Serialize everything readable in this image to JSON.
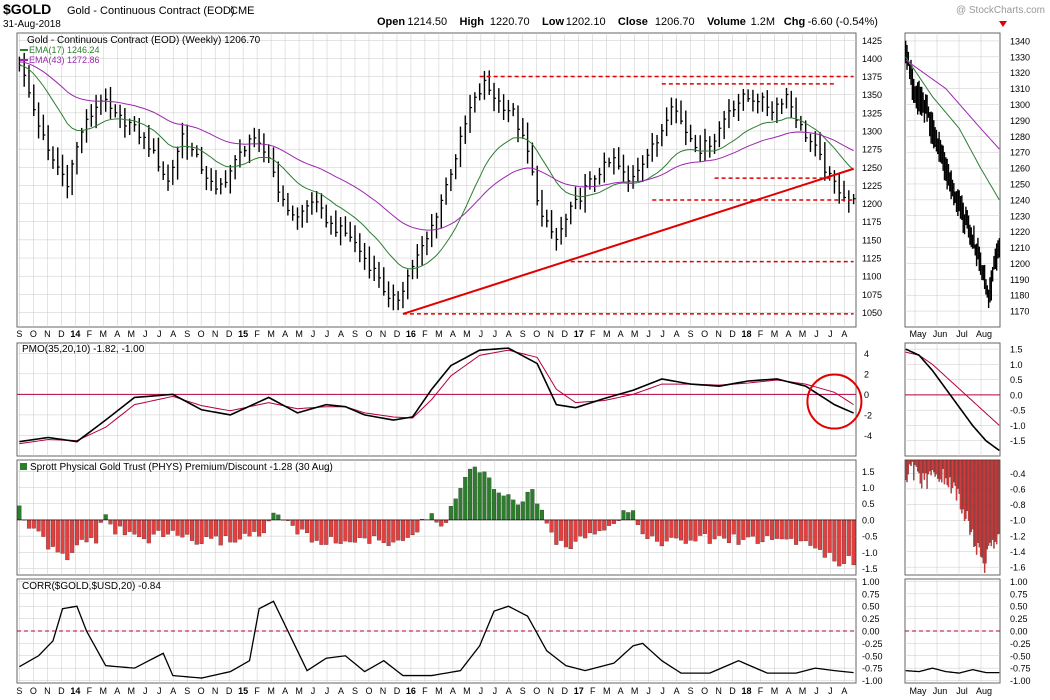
{
  "header": {
    "symbol": "$GOLD",
    "name": "Gold - Continuous Contract (EOD)",
    "exchange": "CME",
    "date": "31-Aug-2018",
    "watermark": "@ StockCharts.com",
    "stats": [
      {
        "k": "Open",
        "v": "1214.50"
      },
      {
        "k": "High",
        "v": "1220.70"
      },
      {
        "k": "Low",
        "v": "1202.10"
      },
      {
        "k": "Close",
        "v": "1206.70"
      },
      {
        "k": "Volume",
        "v": "1.2M"
      },
      {
        "k": "Chg",
        "v": "-6.60 (-0.54%)"
      }
    ]
  },
  "colors": {
    "price": "#000000",
    "ema17": "#2e7d32",
    "ema43": "#9c27b0",
    "pmo": "#000000",
    "pmo_signal": "#b3003c",
    "trend": "#e00000",
    "premium": "#2e7d2e",
    "discount": "#e04040",
    "grid": "#c8c8c8",
    "circle": "#e00000"
  },
  "chart_data": [
    {
      "type": "bar",
      "panel": "price",
      "title": "Gold - Continuous Contract (EOD) (Weekly) 1206.70",
      "legend": [
        "EMA(17) 1246.24",
        "EMA(43) 1272.86"
      ],
      "ylim": [
        1030,
        1435
      ],
      "yticks": [
        1050,
        1075,
        1100,
        1125,
        1150,
        1175,
        1200,
        1225,
        1250,
        1275,
        1300,
        1325,
        1350,
        1375,
        1400,
        1425
      ],
      "x_axis": {
        "ticks": [
          "S",
          "O",
          "N",
          "D",
          "14",
          "F",
          "M",
          "A",
          "M",
          "J",
          "J",
          "A",
          "S",
          "O",
          "N",
          "D",
          "15",
          "F",
          "M",
          "A",
          "M",
          "J",
          "J",
          "A",
          "S",
          "O",
          "N",
          "D",
          "16",
          "F",
          "M",
          "A",
          "M",
          "J",
          "J",
          "A",
          "S",
          "O",
          "N",
          "D",
          "17",
          "F",
          "M",
          "A",
          "M",
          "J",
          "J",
          "A",
          "S",
          "O",
          "N",
          "D",
          "18",
          "F",
          "M",
          "A",
          "M",
          "J",
          "J",
          "A"
        ],
        "bold": [
          "14",
          "15",
          "16",
          "17",
          "18"
        ]
      },
      "anchors": [
        [
          0,
          1395
        ],
        [
          3,
          1330
        ],
        [
          6,
          1270
        ],
        [
          10,
          1230
        ],
        [
          13,
          1300
        ],
        [
          17,
          1345
        ],
        [
          20,
          1320
        ],
        [
          23,
          1310
        ],
        [
          27,
          1280
        ],
        [
          31,
          1230
        ],
        [
          34,
          1295
        ],
        [
          38,
          1250
        ],
        [
          41,
          1215
        ],
        [
          44,
          1245
        ],
        [
          48,
          1290
        ],
        [
          52,
          1265
        ],
        [
          55,
          1200
        ],
        [
          58,
          1180
        ],
        [
          61,
          1205
        ],
        [
          65,
          1170
        ],
        [
          69,
          1155
        ],
        [
          73,
          1115
        ],
        [
          75,
          1100
        ],
        [
          77,
          1065
        ],
        [
          79,
          1070
        ],
        [
          82,
          1115
        ],
        [
          85,
          1150
        ],
        [
          88,
          1205
        ],
        [
          91,
          1265
        ],
        [
          94,
          1330
        ],
        [
          97,
          1365
        ],
        [
          100,
          1340
        ],
        [
          103,
          1325
        ],
        [
          106,
          1270
        ],
        [
          109,
          1180
        ],
        [
          112,
          1150
        ],
        [
          115,
          1190
        ],
        [
          118,
          1220
        ],
        [
          121,
          1245
        ],
        [
          124,
          1260
        ],
        [
          127,
          1230
        ],
        [
          130,
          1260
        ],
        [
          133,
          1285
        ],
        [
          136,
          1340
        ],
        [
          139,
          1300
        ],
        [
          142,
          1275
        ],
        [
          145,
          1290
        ],
        [
          148,
          1330
        ],
        [
          151,
          1345
        ],
        [
          154,
          1345
        ],
        [
          157,
          1330
        ],
        [
          160,
          1350
        ],
        [
          163,
          1305
        ],
        [
          166,
          1275
        ],
        [
          169,
          1235
        ],
        [
          171,
          1220
        ],
        [
          173,
          1206
        ]
      ],
      "ema17_last": 1246.24,
      "ema43_last": 1272.86,
      "trendline": [
        [
          80,
          1048
        ],
        [
          174,
          1248
        ]
      ],
      "support_levels": [
        {
          "y": 1375,
          "from": 96,
          "to": 174
        },
        {
          "y": 1365,
          "from": 134,
          "to": 170
        },
        {
          "y": 1235,
          "from": 145,
          "to": 170
        },
        {
          "y": 1205,
          "from": 132,
          "to": 174
        },
        {
          "y": 1120,
          "from": 115,
          "to": 174
        },
        {
          "y": 1048,
          "from": 80,
          "to": 174
        }
      ],
      "inset": {
        "ylim": [
          1160,
          1345
        ],
        "yticks": [
          1170,
          1180,
          1190,
          1200,
          1210,
          1220,
          1230,
          1240,
          1250,
          1260,
          1270,
          1280,
          1290,
          1300,
          1310,
          1320,
          1330,
          1340
        ],
        "x_ticks": [
          "May",
          "Jun",
          "Jul",
          "Aug"
        ],
        "anchors": [
          [
            0,
            1335
          ],
          [
            6,
            1310
          ],
          [
            14,
            1300
          ],
          [
            22,
            1280
          ],
          [
            30,
            1260
          ],
          [
            38,
            1240
          ],
          [
            46,
            1225
          ],
          [
            52,
            1210
          ],
          [
            58,
            1195
          ],
          [
            62,
            1175
          ],
          [
            66,
            1200
          ],
          [
            70,
            1210
          ]
        ],
        "ema17": [
          [
            0,
            1330
          ],
          [
            20,
            1305
          ],
          [
            40,
            1285
          ],
          [
            56,
            1260
          ],
          [
            70,
            1240
          ]
        ],
        "ema43": [
          [
            0,
            1328
          ],
          [
            30,
            1310
          ],
          [
            56,
            1285
          ],
          [
            70,
            1272
          ]
        ]
      }
    },
    {
      "type": "line",
      "panel": "pmo",
      "title": "PMO(35,20,10) -1.82, -1.00",
      "ylim": [
        -6,
        5
      ],
      "yticks": [
        -4,
        -2,
        0,
        2,
        4
      ],
      "zero": 0,
      "pmo": [
        [
          0,
          -4.6
        ],
        [
          6,
          -4.2
        ],
        [
          12,
          -4.6
        ],
        [
          18,
          -2.5
        ],
        [
          24,
          -0.3
        ],
        [
          32,
          0.0
        ],
        [
          38,
          -1.5
        ],
        [
          44,
          -2.0
        ],
        [
          52,
          -0.3
        ],
        [
          58,
          -1.8
        ],
        [
          64,
          -1.0
        ],
        [
          68,
          -1.2
        ],
        [
          72,
          -2.0
        ],
        [
          78,
          -2.5
        ],
        [
          82,
          -2.2
        ],
        [
          86,
          0.5
        ],
        [
          90,
          2.8
        ],
        [
          96,
          4.3
        ],
        [
          102,
          4.5
        ],
        [
          108,
          3.0
        ],
        [
          112,
          -1.0
        ],
        [
          116,
          -1.3
        ],
        [
          122,
          -0.4
        ],
        [
          128,
          0.4
        ],
        [
          134,
          1.5
        ],
        [
          140,
          1.0
        ],
        [
          146,
          0.8
        ],
        [
          152,
          1.3
        ],
        [
          158,
          1.5
        ],
        [
          164,
          0.8
        ],
        [
          170,
          -1.0
        ],
        [
          174,
          -1.82
        ]
      ],
      "signal": [
        [
          0,
          -4.8
        ],
        [
          6,
          -4.4
        ],
        [
          12,
          -4.5
        ],
        [
          18,
          -3.2
        ],
        [
          24,
          -1.0
        ],
        [
          32,
          -0.2
        ],
        [
          38,
          -1.1
        ],
        [
          44,
          -1.6
        ],
        [
          52,
          -0.8
        ],
        [
          58,
          -1.4
        ],
        [
          64,
          -1.2
        ],
        [
          68,
          -1.2
        ],
        [
          72,
          -1.8
        ],
        [
          78,
          -2.2
        ],
        [
          82,
          -2.3
        ],
        [
          86,
          -0.5
        ],
        [
          90,
          1.8
        ],
        [
          96,
          3.8
        ],
        [
          102,
          4.3
        ],
        [
          108,
          3.6
        ],
        [
          112,
          0.5
        ],
        [
          116,
          -0.8
        ],
        [
          122,
          -0.6
        ],
        [
          128,
          0.0
        ],
        [
          134,
          1.0
        ],
        [
          140,
          1.0
        ],
        [
          146,
          0.9
        ],
        [
          152,
          1.1
        ],
        [
          158,
          1.4
        ],
        [
          164,
          1.0
        ],
        [
          170,
          0.2
        ],
        [
          174,
          -1.0
        ]
      ],
      "inset": {
        "ylim": [
          -2.0,
          1.7
        ],
        "yticks": [
          -1.5,
          -1.0,
          -0.5,
          0.0,
          0.5,
          1.0,
          1.5
        ],
        "pmo": [
          [
            0,
            1.5
          ],
          [
            10,
            1.3
          ],
          [
            20,
            0.8
          ],
          [
            30,
            0.2
          ],
          [
            40,
            -0.4
          ],
          [
            50,
            -1.0
          ],
          [
            60,
            -1.5
          ],
          [
            70,
            -1.82
          ]
        ],
        "signal": [
          [
            0,
            1.4
          ],
          [
            10,
            1.3
          ],
          [
            20,
            1.0
          ],
          [
            30,
            0.6
          ],
          [
            40,
            0.2
          ],
          [
            50,
            -0.2
          ],
          [
            60,
            -0.6
          ],
          [
            70,
            -1.0
          ]
        ]
      }
    },
    {
      "type": "bar",
      "panel": "phys",
      "title": "Sprott Physical Gold Trust (PHYS) Premium/Discount -1.28 (30 Aug)",
      "ylim": [
        -1.7,
        1.85
      ],
      "yticks": [
        -1.5,
        -1.0,
        -0.5,
        0.0,
        0.5,
        1.0,
        1.5
      ],
      "anchors": [
        [
          0,
          0.3
        ],
        [
          2,
          -0.2
        ],
        [
          6,
          -0.8
        ],
        [
          10,
          -1.3
        ],
        [
          13,
          -0.6
        ],
        [
          16,
          -0.6
        ],
        [
          18,
          0.1
        ],
        [
          20,
          -0.3
        ],
        [
          26,
          -0.6
        ],
        [
          32,
          -0.4
        ],
        [
          38,
          -0.7
        ],
        [
          44,
          -0.6
        ],
        [
          50,
          -0.4
        ],
        [
          54,
          0.2
        ],
        [
          58,
          -0.4
        ],
        [
          64,
          -0.7
        ],
        [
          70,
          -0.6
        ],
        [
          76,
          -0.7
        ],
        [
          82,
          -0.5
        ],
        [
          86,
          0.2
        ],
        [
          88,
          -0.3
        ],
        [
          91,
          0.7
        ],
        [
          94,
          1.6
        ],
        [
          97,
          1.4
        ],
        [
          100,
          0.7
        ],
        [
          104,
          0.6
        ],
        [
          107,
          0.8
        ],
        [
          110,
          -0.2
        ],
        [
          114,
          -1.0
        ],
        [
          118,
          -0.4
        ],
        [
          122,
          -0.2
        ],
        [
          126,
          0.2
        ],
        [
          128,
          0.4
        ],
        [
          130,
          -0.5
        ],
        [
          136,
          -0.7
        ],
        [
          142,
          -0.6
        ],
        [
          148,
          -0.6
        ],
        [
          154,
          -0.6
        ],
        [
          160,
          -0.6
        ],
        [
          164,
          -0.7
        ],
        [
          168,
          -1.0
        ],
        [
          171,
          -1.5
        ],
        [
          173,
          -1.28
        ]
      ],
      "inset": {
        "ylim": [
          -1.7,
          -0.23
        ],
        "yticks": [
          -1.6,
          -1.4,
          -1.2,
          -1.0,
          -0.8,
          -0.6,
          -0.4
        ],
        "anchors": [
          [
            0,
            -0.6
          ],
          [
            4,
            -0.3
          ],
          [
            10,
            -0.5
          ],
          [
            16,
            -0.5
          ],
          [
            24,
            -0.4
          ],
          [
            30,
            -0.5
          ],
          [
            36,
            -0.6
          ],
          [
            42,
            -0.8
          ],
          [
            46,
            -1.0
          ],
          [
            50,
            -1.2
          ],
          [
            54,
            -1.4
          ],
          [
            58,
            -1.6
          ],
          [
            62,
            -1.4
          ],
          [
            66,
            -1.28
          ]
        ]
      }
    },
    {
      "type": "line",
      "panel": "corr",
      "title": "CORR($GOLD,$USD,20) -0.84",
      "ylim": [
        -1.05,
        1.05
      ],
      "yticks": [
        -1.0,
        -0.75,
        -0.5,
        -0.25,
        0.0,
        0.25,
        0.5,
        0.75,
        1.0
      ],
      "zero": 0,
      "values": [
        [
          0,
          -0.72
        ],
        [
          4,
          -0.5
        ],
        [
          7,
          -0.2
        ],
        [
          9,
          0.45
        ],
        [
          12,
          0.5
        ],
        [
          14,
          0.0
        ],
        [
          18,
          -0.7
        ],
        [
          24,
          -0.75
        ],
        [
          30,
          -0.45
        ],
        [
          32,
          -0.9
        ],
        [
          38,
          -0.95
        ],
        [
          44,
          -0.82
        ],
        [
          48,
          -0.6
        ],
        [
          50,
          0.45
        ],
        [
          53,
          0.6
        ],
        [
          56,
          0.0
        ],
        [
          60,
          -0.8
        ],
        [
          64,
          -0.55
        ],
        [
          68,
          -0.5
        ],
        [
          72,
          -0.82
        ],
        [
          76,
          -0.6
        ],
        [
          80,
          -0.9
        ],
        [
          86,
          -0.9
        ],
        [
          92,
          -0.8
        ],
        [
          96,
          -0.3
        ],
        [
          99,
          0.4
        ],
        [
          102,
          0.5
        ],
        [
          106,
          0.3
        ],
        [
          110,
          -0.4
        ],
        [
          114,
          -0.7
        ],
        [
          118,
          -0.8
        ],
        [
          124,
          -0.65
        ],
        [
          128,
          -0.3
        ],
        [
          130,
          -0.25
        ],
        [
          134,
          -0.6
        ],
        [
          138,
          -0.85
        ],
        [
          144,
          -0.85
        ],
        [
          150,
          -0.6
        ],
        [
          156,
          -0.85
        ],
        [
          162,
          -0.85
        ],
        [
          166,
          -0.75
        ],
        [
          170,
          -0.8
        ],
        [
          174,
          -0.84
        ]
      ],
      "inset": {
        "ylim": [
          -1.05,
          1.05
        ],
        "yticks": [
          -1.0,
          -0.75,
          -0.5,
          -0.25,
          0.0,
          0.25,
          0.5,
          0.75,
          1.0
        ],
        "values": [
          [
            0,
            -0.8
          ],
          [
            10,
            -0.82
          ],
          [
            20,
            -0.75
          ],
          [
            30,
            -0.82
          ],
          [
            40,
            -0.85
          ],
          [
            50,
            -0.78
          ],
          [
            60,
            -0.84
          ],
          [
            70,
            -0.84
          ]
        ]
      }
    }
  ]
}
